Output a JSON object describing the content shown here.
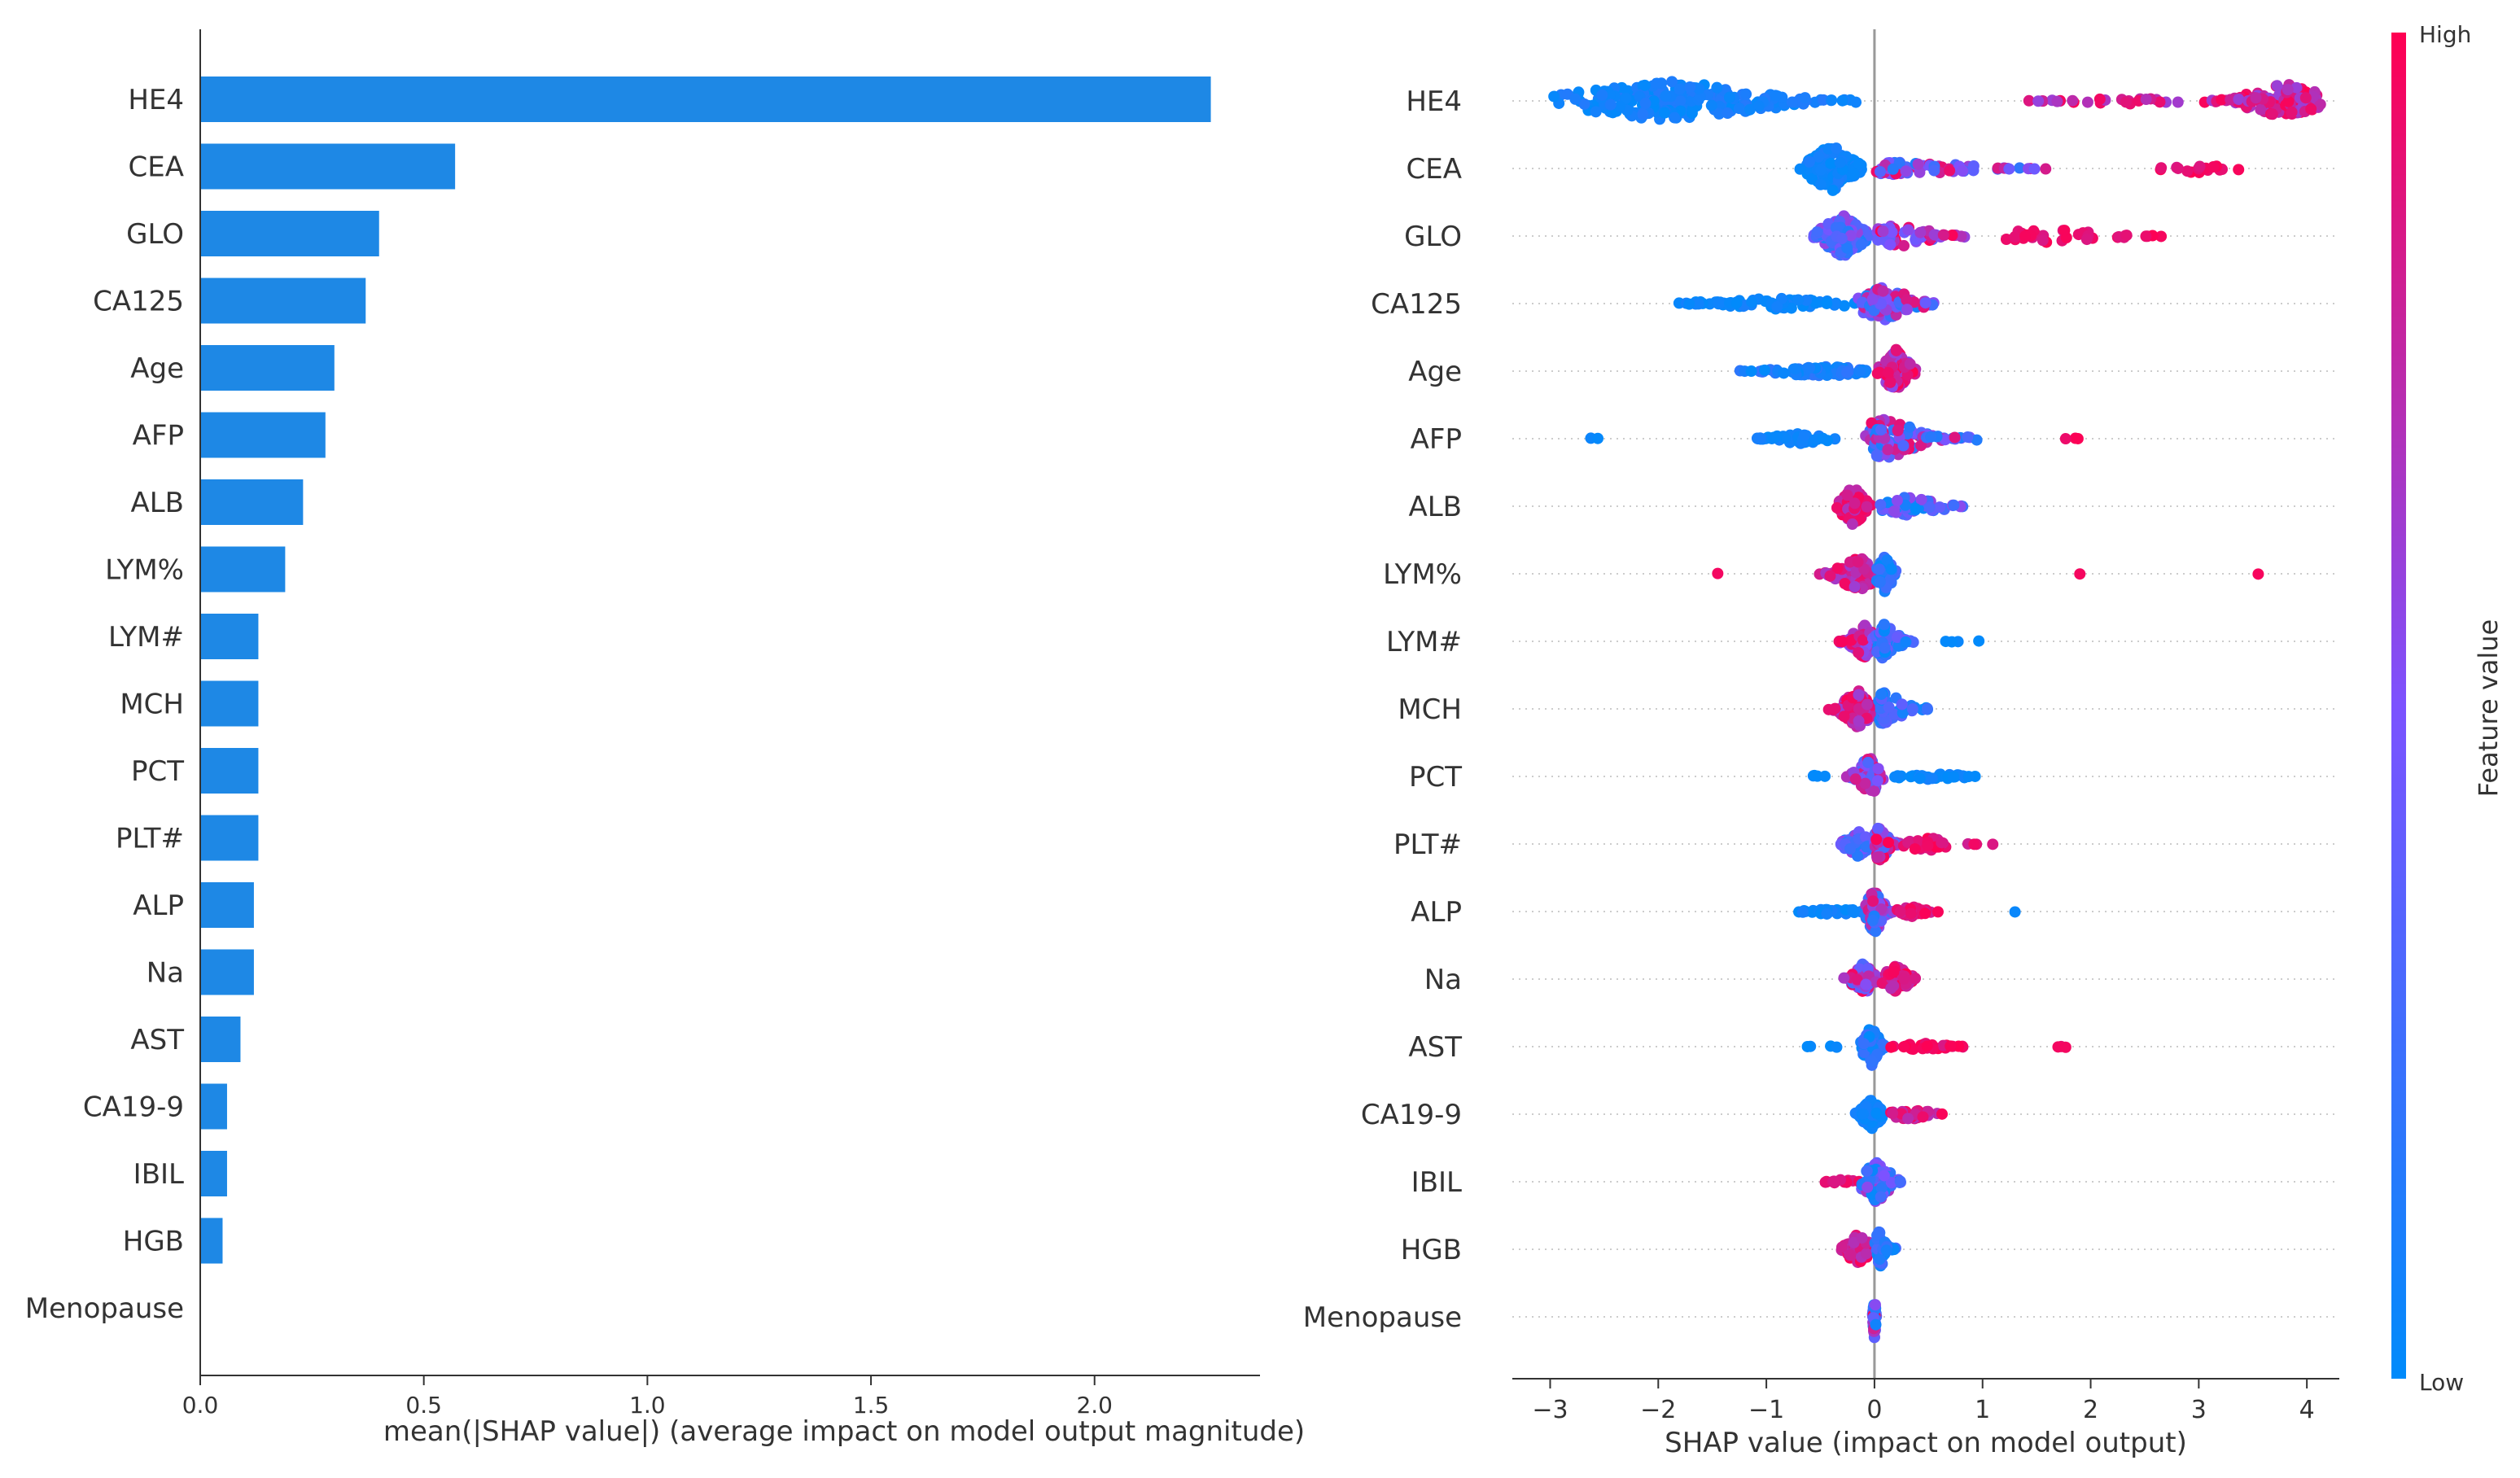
{
  "chart_data": [
    {
      "type": "bar",
      "orientation": "horizontal",
      "categories": [
        "HE4",
        "CEA",
        "GLO",
        "CA125",
        "Age",
        "AFP",
        "ALB",
        "LYM%",
        "LYM#",
        "MCH",
        "PCT",
        "PLT#",
        "ALP",
        "Na",
        "AST",
        "CA19-9",
        "IBIL",
        "HGB",
        "Menopause"
      ],
      "values": [
        2.26,
        0.57,
        0.4,
        0.37,
        0.3,
        0.28,
        0.23,
        0.19,
        0.13,
        0.13,
        0.13,
        0.13,
        0.12,
        0.12,
        0.09,
        0.06,
        0.06,
        0.05,
        0.0
      ],
      "xlabel": "mean(|SHAP value|) (average impact on model output magnitude)",
      "xlim": [
        0,
        2.37
      ],
      "xticks": [
        0.0,
        0.5,
        1.0,
        1.5,
        2.0
      ],
      "xtick_labels": [
        "0.0",
        "0.5",
        "1.0",
        "1.5",
        "2.0"
      ],
      "bar_color": "#1E88E5",
      "grid": false
    },
    {
      "type": "scatter",
      "subtype": "beeswarm",
      "categories": [
        "HE4",
        "CEA",
        "GLO",
        "CA125",
        "Age",
        "AFP",
        "ALB",
        "LYM%",
        "LYM#",
        "MCH",
        "PCT",
        "PLT#",
        "ALP",
        "Na",
        "AST",
        "CA19-9",
        "IBIL",
        "HGB",
        "Menopause"
      ],
      "xlabel": "SHAP value (impact on model output)",
      "xlim": [
        -3.35,
        4.3
      ],
      "xticks": [
        -3,
        -2,
        -1,
        0,
        1,
        2,
        3,
        4
      ],
      "xtick_labels": [
        "−3",
        "−2",
        "−1",
        "0",
        "1",
        "2",
        "3",
        "4"
      ],
      "colorbar": {
        "label": "Feature value",
        "high_label": "High",
        "low_label": "Low",
        "low_color": "#008BFB",
        "mid_color": "#7C52FF",
        "high_color": "#FF0052"
      },
      "zero_line": true,
      "grid": false,
      "series": [
        {
          "feature": "HE4",
          "clusters": [
            {
              "lo": -3.05,
              "hi": -0.05,
              "center": -1.9,
              "n": 220,
              "fv": [
                0.0,
                0.15
              ],
              "spread": 0.36
            },
            {
              "lo": 1.35,
              "hi": 3.0,
              "center": 2.3,
              "n": 26,
              "fv": [
                0.55,
                1.0
              ],
              "spread": 0.06
            },
            {
              "lo": 3.0,
              "hi": 4.15,
              "center": 3.8,
              "n": 110,
              "fv": [
                0.6,
                1.0
              ],
              "spread": 0.32
            }
          ]
        },
        {
          "feature": "CEA",
          "clusters": [
            {
              "lo": -0.7,
              "hi": -0.05,
              "center": -0.4,
              "n": 140,
              "fv": [
                0.0,
                0.12
              ],
              "spread": 0.42
            },
            {
              "lo": -0.05,
              "hi": 1.9,
              "center": 0.3,
              "n": 80,
              "fv": [
                0.1,
                0.95
              ],
              "spread": 0.12
            },
            {
              "lo": 2.5,
              "hi": 3.5,
              "center": 3.0,
              "n": 16,
              "fv": [
                0.85,
                1.0
              ],
              "spread": 0.08
            }
          ]
        },
        {
          "feature": "GLO",
          "clusters": [
            {
              "lo": -0.6,
              "hi": 0.0,
              "center": -0.3,
              "n": 110,
              "fv": [
                0.1,
                0.6
              ],
              "spread": 0.38
            },
            {
              "lo": 0.0,
              "hi": 1.1,
              "center": 0.2,
              "n": 70,
              "fv": [
                0.35,
                1.0
              ],
              "spread": 0.2
            },
            {
              "lo": 1.1,
              "hi": 2.95,
              "center": 1.6,
              "n": 36,
              "fv": [
                0.85,
                1.0
              ],
              "spread": 0.12
            }
          ]
        },
        {
          "feature": "CA125",
          "clusters": [
            {
              "lo": -2.2,
              "hi": -0.1,
              "center": -0.9,
              "n": 70,
              "fv": [
                0.0,
                0.1
              ],
              "spread": 0.1
            },
            {
              "lo": -0.2,
              "hi": 0.7,
              "center": 0.1,
              "n": 110,
              "fv": [
                0.05,
                0.9
              ],
              "spread": 0.3
            }
          ]
        },
        {
          "feature": "Age",
          "clusters": [
            {
              "lo": -1.3,
              "hi": 0.0,
              "center": -0.5,
              "n": 90,
              "fv": [
                0.0,
                0.2
              ],
              "spread": 0.1
            },
            {
              "lo": 0.0,
              "hi": 0.4,
              "center": 0.2,
              "n": 100,
              "fv": [
                0.55,
                1.0
              ],
              "spread": 0.38
            }
          ]
        },
        {
          "feature": "AFP",
          "clusters": [
            {
              "lo": -2.85,
              "hi": -2.45,
              "center": -2.6,
              "n": 2,
              "fv": [
                0.0,
                0.05
              ],
              "spread": 0.02
            },
            {
              "lo": -1.2,
              "hi": -0.35,
              "center": -0.7,
              "n": 40,
              "fv": [
                0.0,
                0.1
              ],
              "spread": 0.09
            },
            {
              "lo": -0.1,
              "hi": 1.0,
              "center": 0.1,
              "n": 110,
              "fv": [
                0.1,
                0.95
              ],
              "spread": 0.36
            },
            {
              "lo": 1.75,
              "hi": 1.9,
              "center": 1.82,
              "n": 3,
              "fv": [
                0.9,
                1.0
              ],
              "spread": 0.03
            }
          ]
        },
        {
          "feature": "ALB",
          "clusters": [
            {
              "lo": -0.35,
              "hi": 0.0,
              "center": -0.2,
              "n": 90,
              "fv": [
                0.7,
                1.0
              ],
              "spread": 0.36
            },
            {
              "lo": 0.0,
              "hi": 1.1,
              "center": 0.3,
              "n": 60,
              "fv": [
                0.0,
                0.6
              ],
              "spread": 0.16
            }
          ]
        },
        {
          "feature": "LYM%",
          "clusters": [
            {
              "lo": -1.5,
              "hi": -1.4,
              "center": -1.45,
              "n": 1,
              "fv": [
                0.95,
                1.0
              ],
              "spread": 0.01
            },
            {
              "lo": -0.6,
              "hi": 0.0,
              "center": -0.15,
              "n": 90,
              "fv": [
                0.6,
                1.0
              ],
              "spread": 0.3
            },
            {
              "lo": 0.0,
              "hi": 0.25,
              "center": 0.1,
              "n": 60,
              "fv": [
                0.0,
                0.3
              ],
              "spread": 0.34
            },
            {
              "lo": 1.85,
              "hi": 1.95,
              "center": 1.9,
              "n": 1,
              "fv": [
                0.95,
                1.0
              ],
              "spread": 0.01
            },
            {
              "lo": 3.5,
              "hi": 3.6,
              "center": 3.55,
              "n": 1,
              "fv": [
                0.95,
                1.0
              ],
              "spread": 0.01
            }
          ]
        },
        {
          "feature": "LYM#",
          "clusters": [
            {
              "lo": -0.35,
              "hi": 0.0,
              "center": -0.1,
              "n": 80,
              "fv": [
                0.5,
                1.0
              ],
              "spread": 0.3
            },
            {
              "lo": 0.0,
              "hi": 0.4,
              "center": 0.1,
              "n": 70,
              "fv": [
                0.0,
                0.5
              ],
              "spread": 0.34
            },
            {
              "lo": 0.6,
              "hi": 1.1,
              "center": 0.85,
              "n": 4,
              "fv": [
                0.0,
                0.05
              ],
              "spread": 0.02
            }
          ]
        },
        {
          "feature": "MCH",
          "clusters": [
            {
              "lo": -0.45,
              "hi": 0.0,
              "center": -0.15,
              "n": 90,
              "fv": [
                0.6,
                1.0
              ],
              "spread": 0.34
            },
            {
              "lo": 0.0,
              "hi": 0.6,
              "center": 0.1,
              "n": 70,
              "fv": [
                0.0,
                0.4
              ],
              "spread": 0.3
            }
          ]
        },
        {
          "feature": "PCT",
          "clusters": [
            {
              "lo": -0.7,
              "hi": -0.35,
              "center": -0.55,
              "n": 4,
              "fv": [
                0.0,
                0.05
              ],
              "spread": 0.02
            },
            {
              "lo": -0.3,
              "hi": 0.1,
              "center": -0.05,
              "n": 70,
              "fv": [
                0.3,
                0.9
              ],
              "spread": 0.34
            },
            {
              "lo": 0.15,
              "hi": 1.2,
              "center": 0.5,
              "n": 35,
              "fv": [
                0.0,
                0.1
              ],
              "spread": 0.06
            }
          ]
        },
        {
          "feature": "PLT#",
          "clusters": [
            {
              "lo": -0.4,
              "hi": 0.0,
              "center": -0.15,
              "n": 60,
              "fv": [
                0.1,
                0.6
              ],
              "spread": 0.22
            },
            {
              "lo": 0.0,
              "hi": 0.25,
              "center": 0.05,
              "n": 80,
              "fv": [
                0.3,
                1.0
              ],
              "spread": 0.32
            },
            {
              "lo": 0.25,
              "hi": 1.2,
              "center": 0.5,
              "n": 30,
              "fv": [
                0.8,
                1.0
              ],
              "spread": 0.12
            }
          ]
        },
        {
          "feature": "ALP",
          "clusters": [
            {
              "lo": -0.85,
              "hi": -0.05,
              "center": -0.4,
              "n": 30,
              "fv": [
                0.0,
                0.1
              ],
              "spread": 0.06
            },
            {
              "lo": -0.1,
              "hi": 0.2,
              "center": 0.0,
              "n": 100,
              "fv": [
                0.1,
                0.9
              ],
              "spread": 0.38
            },
            {
              "lo": 0.2,
              "hi": 0.6,
              "center": 0.35,
              "n": 30,
              "fv": [
                0.8,
                1.0
              ],
              "spread": 0.1
            },
            {
              "lo": 1.25,
              "hi": 1.35,
              "center": 1.3,
              "n": 1,
              "fv": [
                0.0,
                0.05
              ],
              "spread": 0.01
            }
          ]
        },
        {
          "feature": "Na",
          "clusters": [
            {
              "lo": -0.3,
              "hi": 0.05,
              "center": -0.1,
              "n": 70,
              "fv": [
                0.3,
                1.0
              ],
              "spread": 0.28
            },
            {
              "lo": 0.05,
              "hi": 0.45,
              "center": 0.2,
              "n": 60,
              "fv": [
                0.7,
                1.0
              ],
              "spread": 0.24
            }
          ]
        },
        {
          "feature": "AST",
          "clusters": [
            {
              "lo": -0.7,
              "hi": -0.2,
              "center": -0.45,
              "n": 4,
              "fv": [
                0.0,
                0.05
              ],
              "spread": 0.02
            },
            {
              "lo": -0.15,
              "hi": 0.1,
              "center": -0.03,
              "n": 80,
              "fv": [
                0.0,
                0.25
              ],
              "spread": 0.36
            },
            {
              "lo": 0.1,
              "hi": 0.9,
              "center": 0.45,
              "n": 30,
              "fv": [
                0.85,
                1.0
              ],
              "spread": 0.06
            },
            {
              "lo": 1.6,
              "hi": 1.95,
              "center": 1.75,
              "n": 3,
              "fv": [
                0.9,
                1.0
              ],
              "spread": 0.02
            }
          ]
        },
        {
          "feature": "CA19-9",
          "clusters": [
            {
              "lo": -0.2,
              "hi": 0.1,
              "center": -0.03,
              "n": 110,
              "fv": [
                0.0,
                0.1
              ],
              "spread": 0.26
            },
            {
              "lo": 0.1,
              "hi": 0.8,
              "center": 0.35,
              "n": 30,
              "fv": [
                0.7,
                1.0
              ],
              "spread": 0.1
            }
          ]
        },
        {
          "feature": "IBIL",
          "clusters": [
            {
              "lo": -0.6,
              "hi": -0.1,
              "center": -0.3,
              "n": 14,
              "fv": [
                0.85,
                1.0
              ],
              "spread": 0.04
            },
            {
              "lo": -0.15,
              "hi": 0.3,
              "center": 0.02,
              "n": 90,
              "fv": [
                0.0,
                0.7
              ],
              "spread": 0.36
            }
          ]
        },
        {
          "feature": "HGB",
          "clusters": [
            {
              "lo": -0.35,
              "hi": 0.0,
              "center": -0.15,
              "n": 60,
              "fv": [
                0.7,
                1.0
              ],
              "spread": 0.28
            },
            {
              "lo": 0.0,
              "hi": 0.2,
              "center": 0.05,
              "n": 60,
              "fv": [
                0.0,
                0.3
              ],
              "spread": 0.34
            }
          ]
        },
        {
          "feature": "Menopause",
          "clusters": [
            {
              "lo": -0.02,
              "hi": 0.02,
              "center": 0.0,
              "n": 60,
              "fv": [
                0.0,
                1.0
              ],
              "spread": 0.38
            }
          ]
        }
      ]
    }
  ]
}
